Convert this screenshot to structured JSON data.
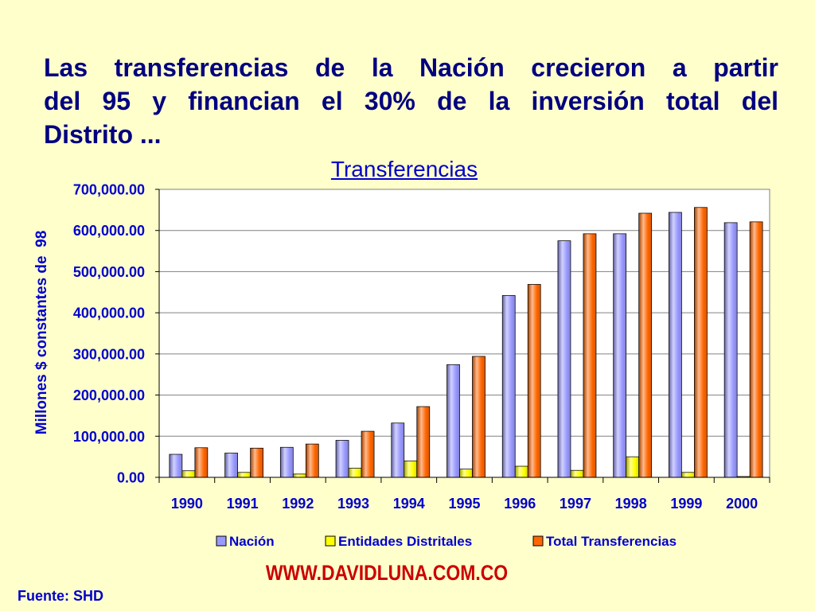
{
  "slide": {
    "title_lines": [
      "Las transferencias de la Nación crecieron a partir",
      "del 95 y financian el 30% de la inversión total del",
      "Distrito ..."
    ],
    "website": "WWW.DAVIDLUNA.COM.CO",
    "source": "Fuente: SHD"
  },
  "colors": {
    "background": "#FFFFCC",
    "title": "#000080",
    "chart_text": "#0000CC",
    "website": "#CC0000",
    "grid": "#808080",
    "plot_background": "#FFFFFF"
  },
  "chart_data": {
    "type": "bar",
    "title": "Transferencias",
    "xlabel": "",
    "ylabel": "Millones $ constantes de  98",
    "categories": [
      "1990",
      "1991",
      "1992",
      "1993",
      "1994",
      "1995",
      "1996",
      "1997",
      "1998",
      "1999",
      "2000"
    ],
    "series": [
      {
        "name": "Nación",
        "color": "#9999FF",
        "values": [
          56000,
          59000,
          73000,
          90000,
          132000,
          274000,
          442000,
          575000,
          592000,
          644000,
          619000
        ]
      },
      {
        "name": "Entidades Distritales",
        "color": "#FFFF00",
        "values": [
          16000,
          12000,
          8000,
          22000,
          40000,
          20000,
          27000,
          17000,
          50000,
          12000,
          2000
        ]
      },
      {
        "name": "Total Transferencias",
        "color": "#FF6600",
        "values": [
          72000,
          71000,
          81000,
          112000,
          172000,
          294000,
          469000,
          592000,
          642000,
          656000,
          621000
        ]
      }
    ],
    "ylim": [
      0,
      700000
    ],
    "yticks": [
      0,
      100000,
      200000,
      300000,
      400000,
      500000,
      600000,
      700000
    ],
    "ytick_labels": [
      "0.00",
      "100,000.00",
      "200,000.00",
      "300,000.00",
      "400,000.00",
      "500,000.00",
      "600,000.00",
      "700,000.00"
    ],
    "grid": true,
    "legend": "bottom"
  }
}
